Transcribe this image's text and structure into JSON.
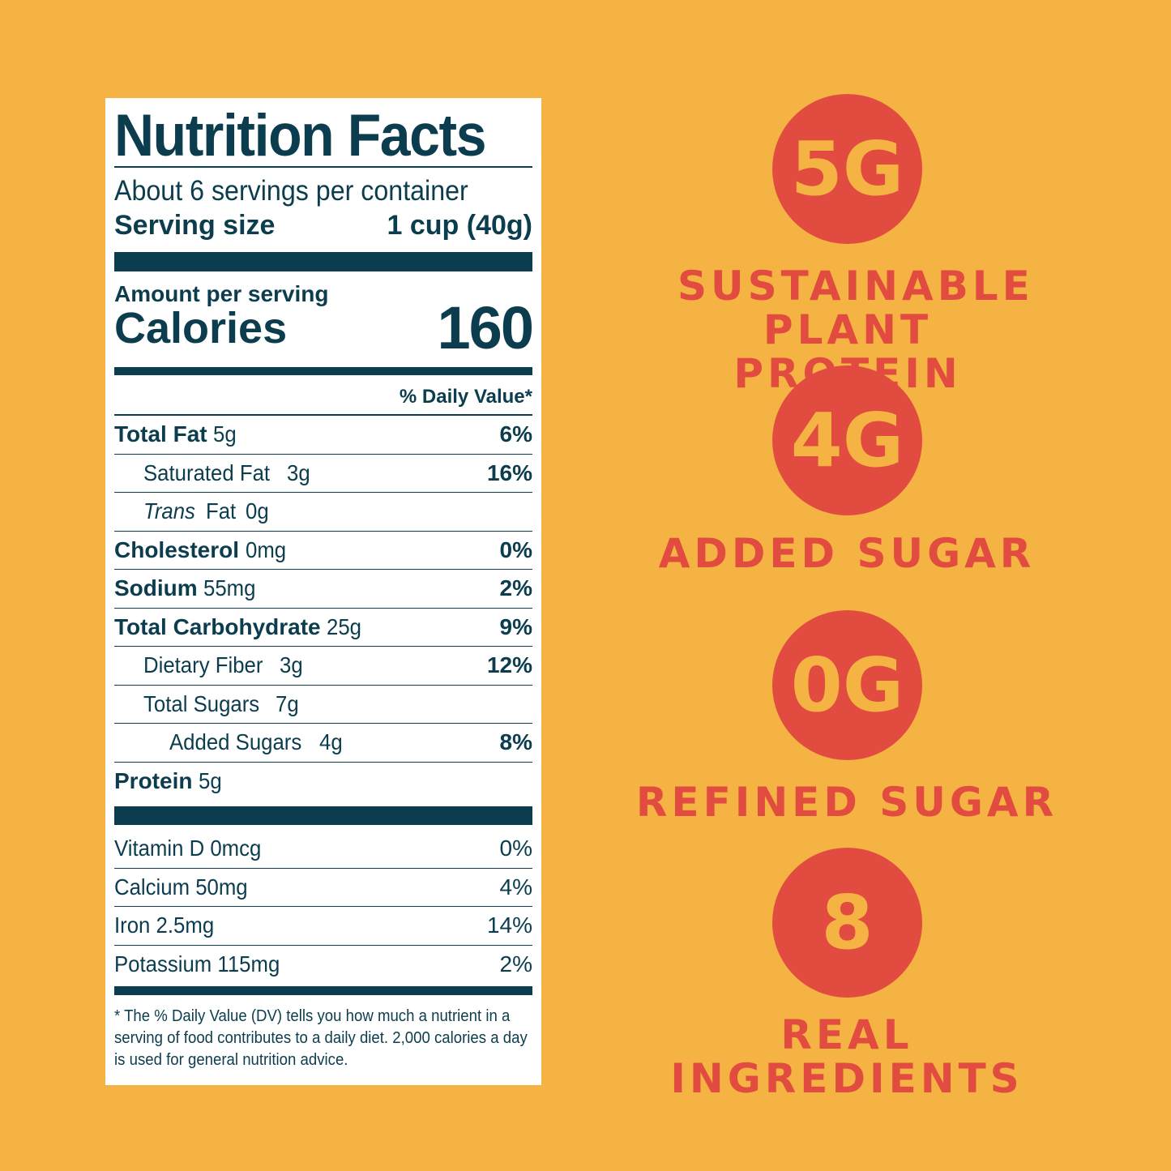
{
  "label": {
    "title": "Nutrition Facts",
    "servings_per_container": "About 6 servings per container",
    "serving_size_label": "Serving size",
    "serving_size_value": "1 cup (40g)",
    "amount_per_serving": "Amount per serving",
    "calories_label": "Calories",
    "calories_value": "160",
    "daily_value_header": "% Daily Value*",
    "nutrients": [
      {
        "name": "Total Fat",
        "amount": "5g",
        "dv": "6%"
      },
      {
        "name": "Saturated Fat",
        "amount": "3g",
        "dv": "16%"
      },
      {
        "name": "Trans",
        "name_rest": "Fat",
        "amount": "0g",
        "dv": ""
      },
      {
        "name": "Cholesterol",
        "amount": "0mg",
        "dv": "0%"
      },
      {
        "name": "Sodium",
        "amount": "55mg",
        "dv": "2%"
      },
      {
        "name": "Total Carbohydrate",
        "amount": "25g",
        "dv": "9%"
      },
      {
        "name": "Dietary Fiber",
        "amount": "3g",
        "dv": "12%"
      },
      {
        "name": "Total Sugars",
        "amount": "7g",
        "dv": ""
      },
      {
        "name": "Added Sugars",
        "amount": "4g",
        "dv": "8%"
      },
      {
        "name": "Protein",
        "amount": "5g",
        "dv": ""
      }
    ],
    "vitamins": [
      {
        "name": "Vitamin D 0mcg",
        "dv": "0%"
      },
      {
        "name": "Calcium 50mg",
        "dv": "4%"
      },
      {
        "name": "Iron 2.5mg",
        "dv": "14%"
      },
      {
        "name": "Potassium 115mg",
        "dv": "2%"
      }
    ],
    "footnote": "* The % Daily Value (DV) tells you how much a nutrient in a serving of food contributes to a daily diet. 2,000 calories a day is used for general nutrition advice."
  },
  "claims": [
    {
      "value": "5G",
      "text": "SUSTAINABLE PLANT PROTEIN"
    },
    {
      "value": "4G",
      "text": "ADDED SUGAR"
    },
    {
      "value": "0G",
      "text": "REFINED SUGAR"
    },
    {
      "value": "8",
      "text": "REAL INGREDIENTS"
    }
  ],
  "colors": {
    "background": "#F4B343",
    "accent": "#E24B3F",
    "label_ink": "#0C3D4E"
  }
}
